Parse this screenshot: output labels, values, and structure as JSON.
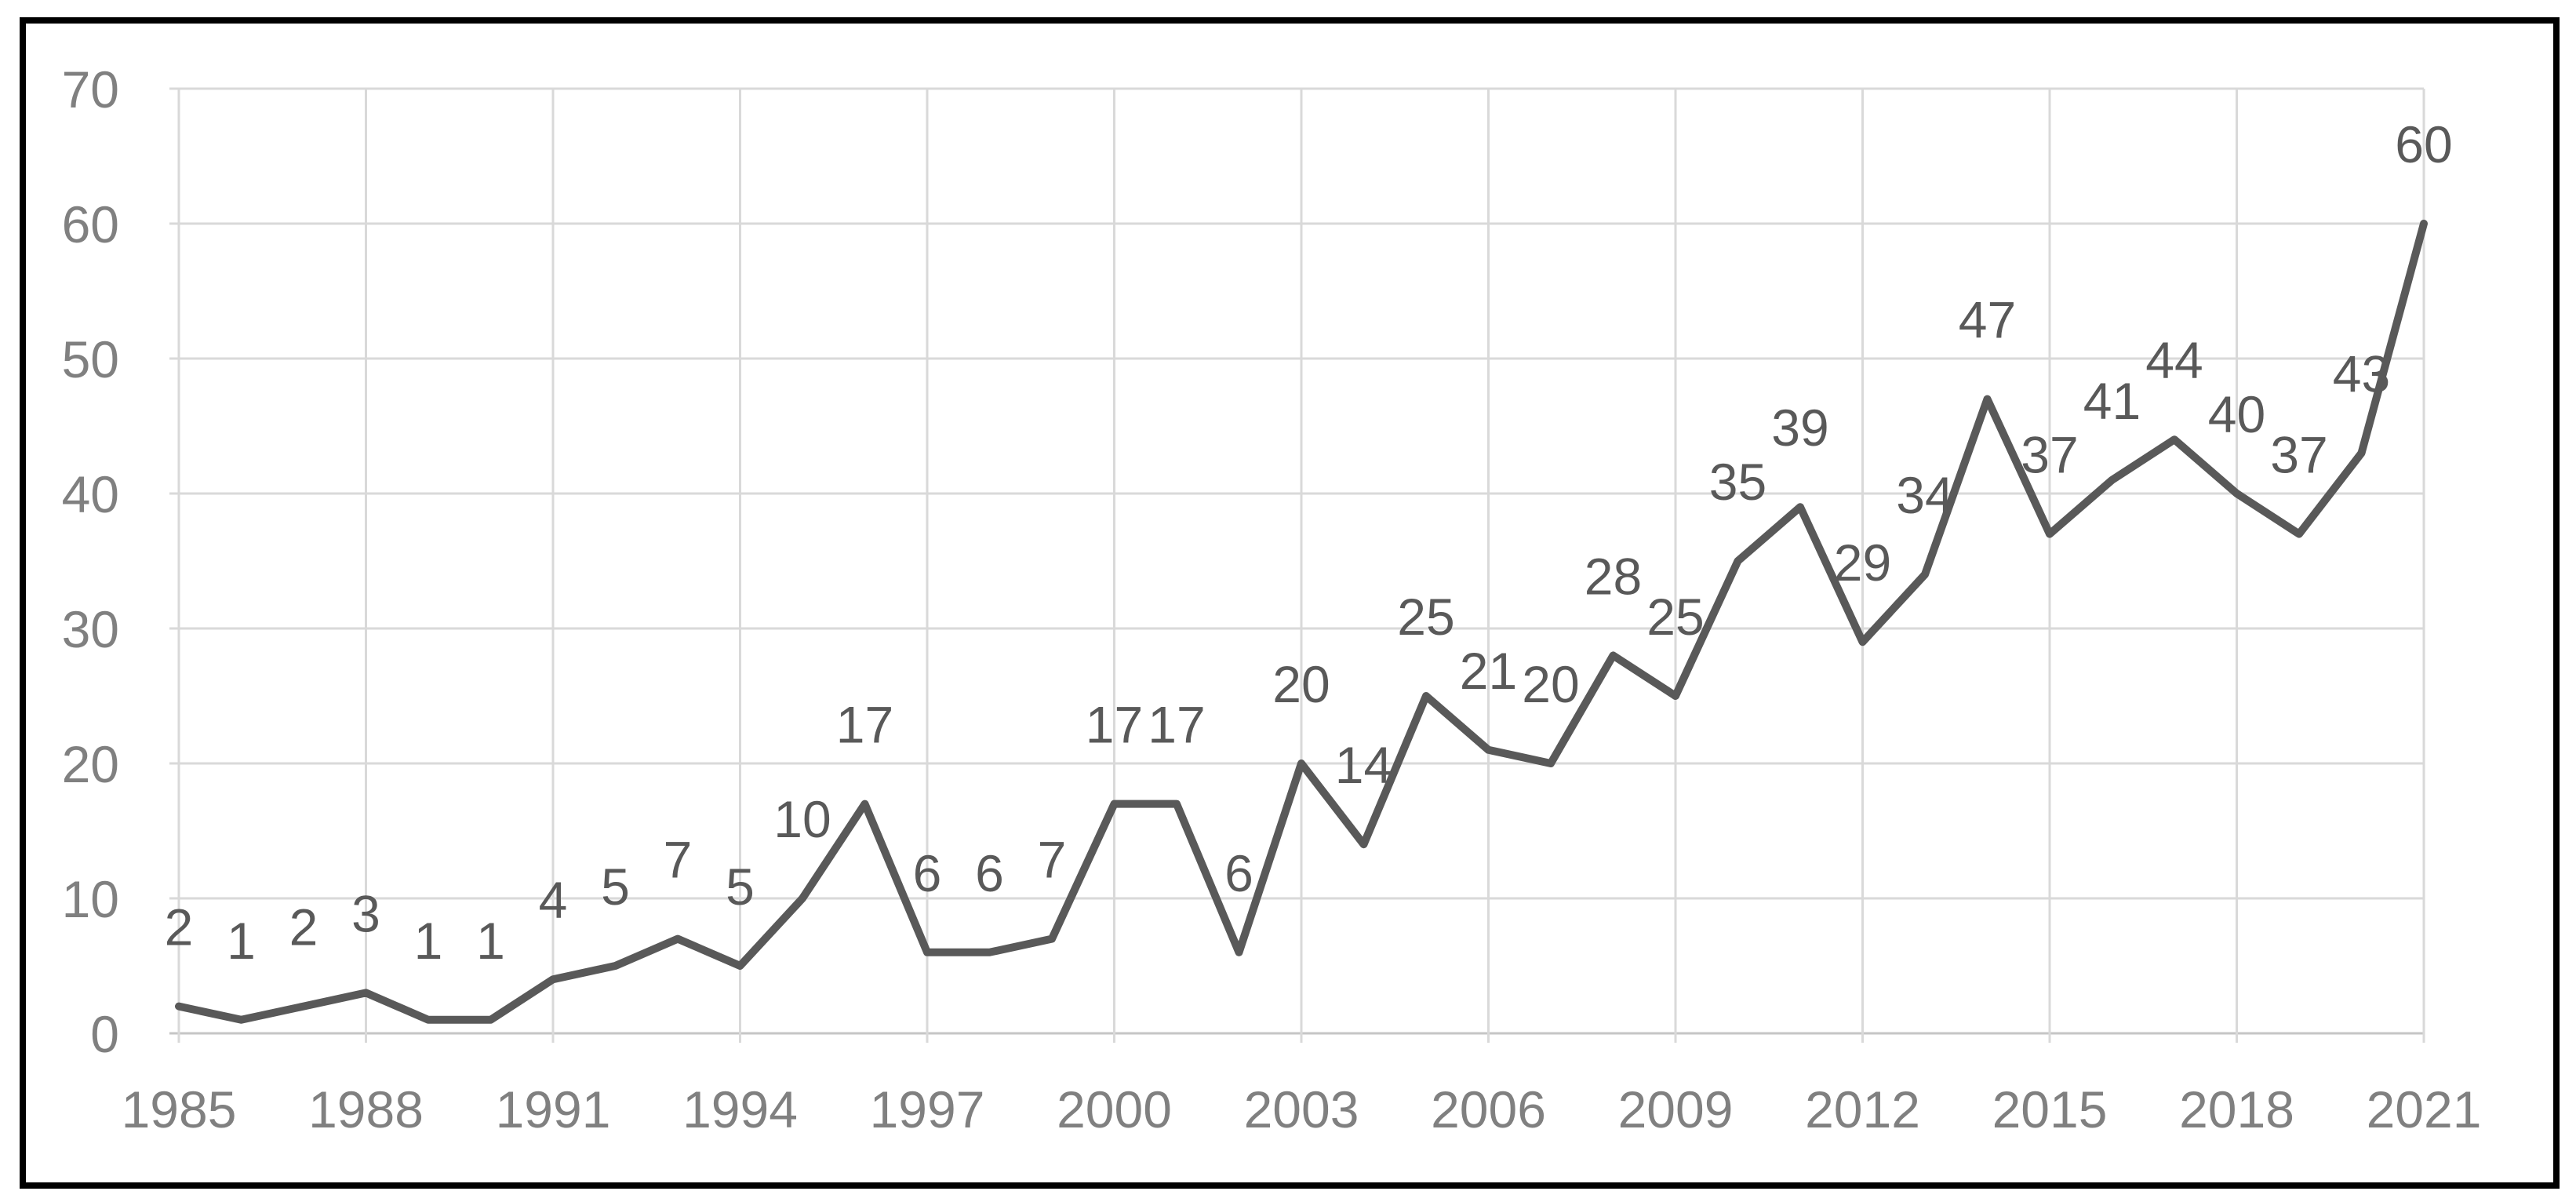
{
  "chart_data": {
    "type": "line",
    "title": "",
    "xlabel": "",
    "ylabel": "",
    "x": [
      1985,
      1986,
      1987,
      1988,
      1989,
      1990,
      1991,
      1992,
      1993,
      1994,
      1995,
      1996,
      1997,
      1998,
      1999,
      2000,
      2001,
      2002,
      2003,
      2004,
      2005,
      2006,
      2007,
      2008,
      2009,
      2010,
      2011,
      2012,
      2013,
      2014,
      2015,
      2016,
      2017,
      2018,
      2019,
      2020,
      2021
    ],
    "series": [
      {
        "name": "annual-count",
        "values": [
          2,
          1,
          2,
          3,
          1,
          1,
          4,
          5,
          7,
          5,
          10,
          17,
          6,
          6,
          7,
          17,
          17,
          6,
          20,
          14,
          25,
          21,
          20,
          28,
          25,
          35,
          39,
          29,
          34,
          47,
          37,
          41,
          44,
          40,
          37,
          43,
          60
        ]
      }
    ],
    "data_labels": [
      "2",
      "1",
      "2",
      "3",
      "1",
      "1",
      "4",
      "5",
      "7",
      "5",
      "10",
      "17",
      "6",
      "6",
      "7",
      "17",
      "17",
      "6",
      "20",
      "14",
      "25",
      "21",
      "20",
      "28",
      "25",
      "35",
      "39",
      "29",
      "34",
      "47",
      "37",
      "41",
      "44",
      "40",
      "37",
      "43",
      "60"
    ],
    "ylim": [
      0,
      70
    ],
    "y_ticks": [
      0,
      10,
      20,
      30,
      40,
      50,
      60,
      70
    ],
    "x_tick_labels": [
      "1985",
      "1988",
      "1991",
      "1994",
      "1997",
      "2000",
      "2003",
      "2006",
      "2009",
      "2012",
      "2015",
      "2018",
      "2021"
    ],
    "x_tick_step": 3,
    "grid": true,
    "legend": "none",
    "colors": {
      "line": "#595959",
      "data_label": "#595959",
      "axis_label": "#808080",
      "gridline": "#D9D9D9",
      "axis_line": "#C6C6C6",
      "frame_border": "#000000",
      "background": "#FFFFFF"
    }
  }
}
